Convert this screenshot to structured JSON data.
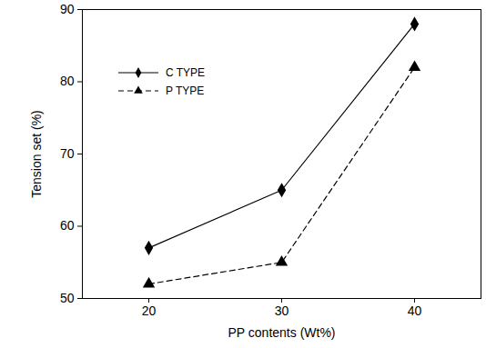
{
  "chart_data": {
    "type": "line",
    "x_label": "PP contents (Wt%)",
    "y_label": "Tension set (%)",
    "x": [
      20,
      30,
      40
    ],
    "series": [
      {
        "name": "C TYPE",
        "color": "#000000",
        "marker": "diamond",
        "line_style": "solid",
        "values": [
          57,
          65,
          88
        ]
      },
      {
        "name": "P TYPE",
        "color": "#000000",
        "marker": "triangle",
        "line_style": "dashed",
        "values": [
          52,
          55,
          82
        ]
      }
    ],
    "xlim": [
      15,
      45
    ],
    "xticks": [
      20,
      30,
      40
    ],
    "ylim": [
      50,
      90
    ],
    "yticks": [
      50,
      60,
      70,
      80,
      90
    ],
    "legend": "upper left",
    "grid": false
  }
}
